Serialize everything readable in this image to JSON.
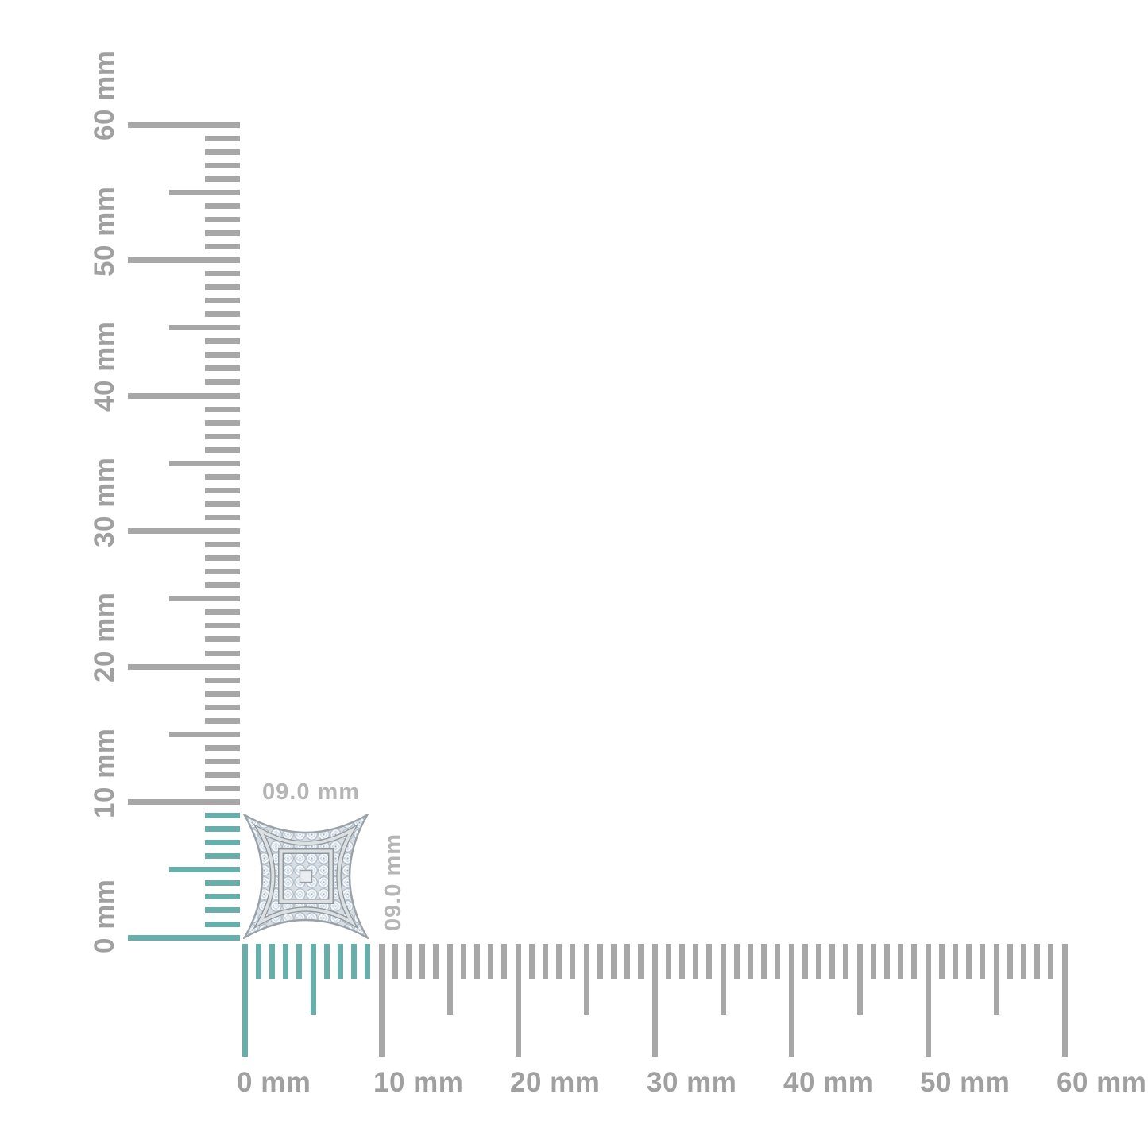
{
  "page": {
    "background": "#ffffff"
  },
  "measurement": {
    "width_label": "09.0 mm",
    "height_label": "09.0 mm",
    "highlighted_span_mm": 9,
    "highlight_color": "#68aeaa"
  },
  "rulers": {
    "unit": "mm",
    "max_mm": 60,
    "tick_interval_mm": 1,
    "half_tick_interval_mm": 5,
    "label_interval_mm": 10,
    "tick_color": "#a7a7a7",
    "label_color": "#a0a0a0",
    "dim_label_color": "#b5b5b5",
    "horizontal": {
      "labels": [
        "0 mm",
        "10 mm",
        "20 mm",
        "30 mm",
        "40 mm",
        "50 mm",
        "60 mm"
      ]
    },
    "vertical": {
      "labels": [
        "0 mm",
        "10 mm",
        "20 mm",
        "30 mm",
        "40 mm",
        "50 mm",
        "60 mm"
      ]
    }
  },
  "product": {
    "metal_color": "#ced4d9",
    "diamond_color": "#f3f7fb",
    "pave_background": "#d7dde3",
    "channel_light": "#dce0e3",
    "channel_dark": "#8f979e"
  }
}
